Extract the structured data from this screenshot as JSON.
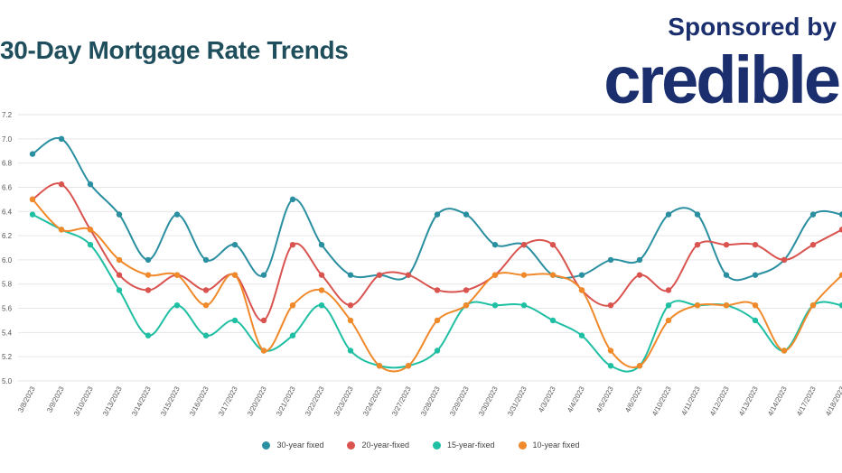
{
  "header": {
    "title": "30-Day Mortgage Rate Trends",
    "sponsor_label": "Sponsored by",
    "brand": "credible"
  },
  "chart_data": {
    "type": "line",
    "title": "30-Day Mortgage Rate Trends",
    "xlabel": "",
    "ylabel": "",
    "ylim": [
      5.0,
      7.2
    ],
    "yticks": [
      5.0,
      5.2,
      5.4,
      5.6,
      5.8,
      6.0,
      6.2,
      6.4,
      6.6,
      6.8,
      7.0,
      7.2
    ],
    "grid": true,
    "legend_position": "bottom",
    "categories": [
      "3/8/2023",
      "3/9/2023",
      "3/10/2023",
      "3/13/2023",
      "3/14/2023",
      "3/15/2023",
      "3/16/2023",
      "3/17/2023",
      "3/20/2023",
      "3/21/2023",
      "3/22/2023",
      "3/23/2023",
      "3/24/2023",
      "3/27/2023",
      "3/28/2023",
      "3/29/2023",
      "3/30/2023",
      "3/31/2023",
      "4/3/2023",
      "4/4/2023",
      "4/5/2023",
      "4/6/2023",
      "4/10/2023",
      "4/11/2023",
      "4/12/2023",
      "4/13/2023",
      "4/14/2023",
      "4/17/2023",
      "4/18/2023"
    ],
    "series": [
      {
        "name": "30-year fixed",
        "color": "#2a8fa0",
        "values": [
          6.875,
          7.0,
          6.625,
          6.375,
          6.0,
          6.375,
          6.0,
          6.125,
          5.875,
          6.5,
          6.125,
          5.875,
          5.875,
          5.875,
          6.375,
          6.375,
          6.125,
          6.125,
          5.875,
          5.875,
          6.0,
          6.0,
          6.375,
          6.375,
          5.875,
          5.875,
          6.0,
          6.375,
          6.375
        ]
      },
      {
        "name": "20-year-fixed",
        "color": "#d9534f",
        "values": [
          6.5,
          6.625,
          6.25,
          5.875,
          5.75,
          5.875,
          5.75,
          5.875,
          5.5,
          6.125,
          5.875,
          5.625,
          5.875,
          5.875,
          5.75,
          5.75,
          5.875,
          6.125,
          6.125,
          5.75,
          5.625,
          5.875,
          5.75,
          6.125,
          6.125,
          6.125,
          6.0,
          6.125,
          6.25
        ]
      },
      {
        "name": "15-year-fixed",
        "color": "#1fbfa3",
        "values": [
          6.375,
          6.25,
          6.125,
          5.75,
          5.375,
          5.625,
          5.375,
          5.5,
          5.25,
          5.375,
          5.625,
          5.25,
          5.125,
          5.125,
          5.25,
          5.625,
          5.625,
          5.625,
          5.5,
          5.375,
          5.125,
          5.125,
          5.625,
          5.625,
          5.625,
          5.5,
          5.25,
          5.625,
          5.625
        ]
      },
      {
        "name": "10-year fixed",
        "color": "#f0892a",
        "values": [
          6.5,
          6.25,
          6.25,
          6.0,
          5.875,
          5.875,
          5.625,
          5.875,
          5.25,
          5.625,
          5.75,
          5.5,
          5.125,
          5.125,
          5.5,
          5.625,
          5.875,
          5.875,
          5.875,
          5.75,
          5.25,
          5.125,
          5.5,
          5.625,
          5.625,
          5.625,
          5.25,
          5.625,
          5.875
        ]
      }
    ]
  }
}
